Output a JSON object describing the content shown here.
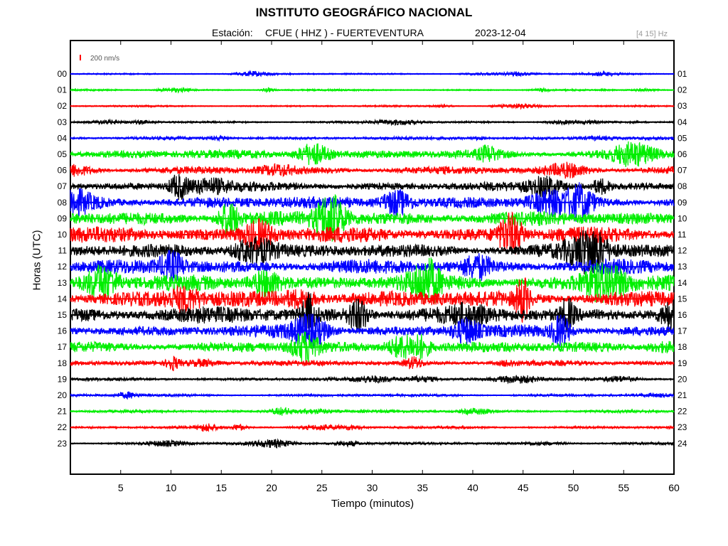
{
  "header": {
    "title": "INSTITUTO GEOGRÁFICO NACIONAL",
    "station_prefix": "Estación:",
    "station": "CFUE ( HHZ ) - FUERTEVENTURA",
    "date": "2023-12-04",
    "band": "[4 15] Hz"
  },
  "chart_data": {
    "type": "line",
    "title": "INSTITUTO GEOGRÁFICO NACIONAL",
    "xlabel": "Tiempo (minutos)",
    "ylabel": "Horas (UTC)",
    "xlim": [
      0,
      60
    ],
    "x_ticks": [
      5,
      10,
      15,
      20,
      25,
      30,
      35,
      40,
      45,
      50,
      55,
      60
    ],
    "left_hour_labels": [
      "00",
      "01",
      "02",
      "03",
      "04",
      "05",
      "06",
      "07",
      "08",
      "09",
      "10",
      "11",
      "12",
      "13",
      "14",
      "15",
      "16",
      "17",
      "18",
      "19",
      "20",
      "21",
      "22",
      "23"
    ],
    "right_hour_labels": [
      "01",
      "02",
      "03",
      "04",
      "05",
      "06",
      "07",
      "08",
      "09",
      "10",
      "11",
      "12",
      "13",
      "14",
      "15",
      "16",
      "17",
      "18",
      "19",
      "20",
      "21",
      "22",
      "23",
      "24"
    ],
    "scale_label": "200 nm/s",
    "scale_color": "#ff0000",
    "trace_colors": [
      "#0000ff",
      "#00ee00",
      "#ff0000",
      "#000000"
    ],
    "trace_relative_amplitude": [
      0.3,
      0.3,
      0.3,
      0.4,
      0.6,
      1.6,
      1.4,
      1.6,
      2.2,
      2.6,
      2.8,
      2.4,
      2.6,
      2.8,
      3.0,
      3.0,
      2.2,
      2.0,
      1.0,
      0.6,
      0.5,
      0.5,
      0.5,
      0.5
    ]
  },
  "colors": {
    "blue": "#0000ff",
    "green": "#00ee00",
    "red": "#ff0000",
    "black": "#000000"
  }
}
